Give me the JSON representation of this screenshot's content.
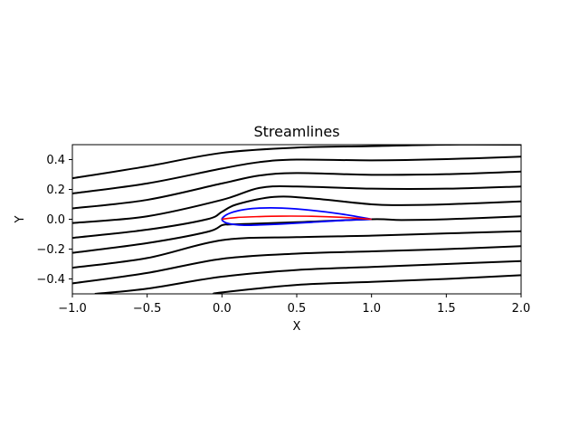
{
  "chart_data": {
    "type": "line",
    "title": "Streamlines",
    "xlabel": "X",
    "ylabel": "Y",
    "xlim": [
      -1.0,
      2.0
    ],
    "ylim": [
      -0.5,
      0.5
    ],
    "xticks": [
      -1.0,
      -0.5,
      0.0,
      0.5,
      1.0,
      1.5,
      2.0
    ],
    "xtick_labels": [
      "−1.0",
      "−0.5",
      "0.0",
      "0.5",
      "1.0",
      "1.5",
      "2.0"
    ],
    "yticks": [
      -0.4,
      -0.2,
      0.0,
      0.2,
      0.4
    ],
    "ytick_labels": [
      "−0.4",
      "−0.2",
      "0.0",
      "0.2",
      "0.4"
    ],
    "grid": false,
    "colors": {
      "streamline": "#000000",
      "airfoil": "#0000ff",
      "camber": "#ff0000"
    },
    "streamlines": [
      {
        "x": [
          -1.0,
          -0.5,
          0.0,
          0.5,
          1.0,
          1.5,
          2.0
        ],
        "y": [
          0.275,
          0.355,
          0.445,
          0.48,
          0.49,
          0.5,
          0.5
        ]
      },
      {
        "x": [
          -1.0,
          -0.5,
          0.0,
          0.25,
          0.5,
          1.0,
          1.5,
          2.0
        ],
        "y": [
          0.173,
          0.24,
          0.34,
          0.383,
          0.4,
          0.395,
          0.403,
          0.42
        ]
      },
      {
        "x": [
          -1.0,
          -0.5,
          0.0,
          0.25,
          0.5,
          1.0,
          1.5,
          2.0
        ],
        "y": [
          0.073,
          0.13,
          0.24,
          0.293,
          0.31,
          0.298,
          0.302,
          0.32
        ]
      },
      {
        "x": [
          -1.0,
          -0.5,
          0.0,
          0.25,
          0.5,
          1.0,
          1.5,
          2.0
        ],
        "y": [
          -0.025,
          0.02,
          0.13,
          0.21,
          0.22,
          0.205,
          0.205,
          0.22
        ]
      },
      {
        "x": [
          -1.0,
          -0.5,
          -0.1,
          0.0,
          0.1,
          0.35,
          0.6,
          1.0,
          1.2,
          1.5,
          2.0
        ],
        "y": [
          -0.125,
          -0.07,
          0.0,
          0.05,
          0.1,
          0.15,
          0.14,
          0.1,
          0.095,
          0.1,
          0.12
        ]
      },
      {
        "x": [
          -1.0,
          -0.5,
          -0.1,
          0.0,
          0.05,
          0.2,
          0.5,
          1.0,
          1.2,
          1.5,
          2.0
        ],
        "y": [
          -0.225,
          -0.16,
          -0.085,
          -0.04,
          -0.035,
          -0.03,
          -0.02,
          0.0,
          -0.005,
          0.0,
          0.02
        ]
      },
      {
        "x": [
          -1.0,
          -0.5,
          0.0,
          0.5,
          1.0,
          1.5,
          2.0
        ],
        "y": [
          -0.325,
          -0.26,
          -0.14,
          -0.12,
          -0.11,
          -0.095,
          -0.08
        ]
      },
      {
        "x": [
          -1.0,
          -0.5,
          0.0,
          0.5,
          1.0,
          1.5,
          2.0
        ],
        "y": [
          -0.43,
          -0.36,
          -0.265,
          -0.23,
          -0.215,
          -0.2,
          -0.18
        ]
      },
      {
        "x": [
          -0.85,
          -0.5,
          0.0,
          0.5,
          1.0,
          1.5,
          2.0
        ],
        "y": [
          -0.5,
          -0.465,
          -0.385,
          -0.34,
          -0.32,
          -0.3,
          -0.28
        ]
      },
      {
        "x": [
          -0.05,
          0.0,
          0.5,
          1.0,
          1.5,
          2.0
        ],
        "y": [
          -0.5,
          -0.49,
          -0.44,
          -0.42,
          -0.4,
          -0.375
        ]
      }
    ],
    "airfoil": {
      "x": [
        1.0,
        0.8,
        0.6,
        0.4,
        0.25,
        0.15,
        0.08,
        0.03,
        0.005,
        0.0,
        0.005,
        0.03,
        0.08,
        0.15,
        0.25,
        0.4,
        0.6,
        0.8,
        1.0
      ],
      "y": [
        0.0,
        0.035,
        0.06,
        0.075,
        0.075,
        0.065,
        0.05,
        0.03,
        0.01,
        0.0,
        -0.01,
        -0.025,
        -0.035,
        -0.04,
        -0.038,
        -0.032,
        -0.02,
        -0.008,
        0.0
      ]
    },
    "camber_line": {
      "x": [
        0.0,
        0.1,
        0.25,
        0.4,
        0.6,
        0.8,
        1.0
      ],
      "y": [
        0.0,
        0.012,
        0.018,
        0.021,
        0.02,
        0.013,
        0.0
      ]
    }
  }
}
